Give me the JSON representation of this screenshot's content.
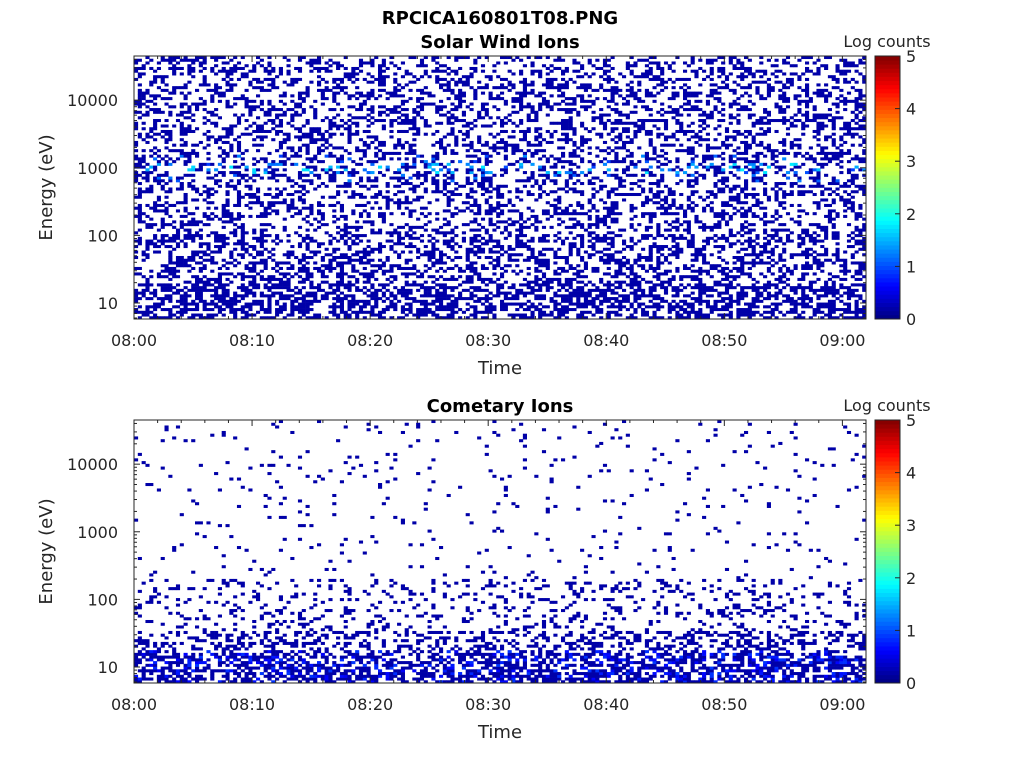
{
  "figure_title": "RPCICA160801T08.PNG",
  "chart_data": [
    {
      "type": "heatmap",
      "title": "Solar Wind Ions",
      "xlabel": "Time",
      "ylabel": "Energy (eV)",
      "x_range": [
        "08:00",
        "09:02"
      ],
      "x_ticks": [
        "08:00",
        "08:10",
        "08:20",
        "08:30",
        "08:40",
        "08:50",
        "09:00"
      ],
      "y_scale": "log",
      "y_range": [
        5.8,
        45000
      ],
      "y_ticks": [
        {
          "value": 10,
          "label": "10"
        },
        {
          "value": 100,
          "label": "100"
        },
        {
          "value": 1000,
          "label": "1000"
        },
        {
          "value": 10000,
          "label": "10000"
        }
      ],
      "colorbar": {
        "label": "Log counts",
        "range": [
          0,
          5
        ],
        "ticks": [
          "0",
          "1",
          "2",
          "3",
          "4",
          "5"
        ],
        "colormap": "jet"
      },
      "peak_band_energy_ev": 1000,
      "peak_log_counts": 1.8,
      "background_log_counts": 0.2,
      "grid": false
    },
    {
      "type": "heatmap",
      "title": "Cometary Ions",
      "xlabel": "Time",
      "ylabel": "Energy (eV)",
      "x_range": [
        "08:00",
        "09:02"
      ],
      "x_ticks": [
        "08:00",
        "08:10",
        "08:20",
        "08:30",
        "08:40",
        "08:50",
        "09:00"
      ],
      "y_scale": "log",
      "y_range": [
        5.8,
        45000
      ],
      "y_ticks": [
        {
          "value": 10,
          "label": "10"
        },
        {
          "value": 100,
          "label": "100"
        },
        {
          "value": 1000,
          "label": "1000"
        },
        {
          "value": 10000,
          "label": "10000"
        }
      ],
      "colorbar": {
        "label": "Log counts",
        "range": [
          0,
          5
        ],
        "ticks": [
          "0",
          "1",
          "2",
          "3",
          "4",
          "5"
        ],
        "colormap": "jet"
      },
      "peak_band_energy_ev": 12,
      "peak_log_counts": 0.9,
      "background_log_counts": 0.2,
      "grid": false
    }
  ]
}
